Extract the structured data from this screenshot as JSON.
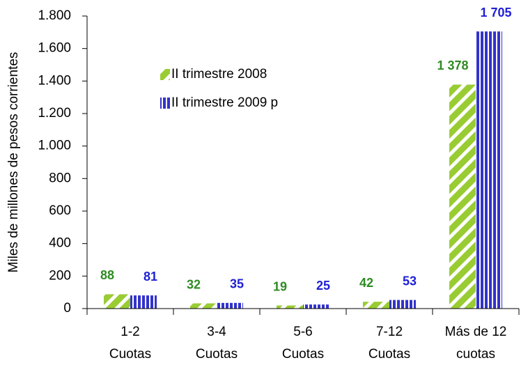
{
  "chart_data": {
    "type": "bar",
    "y_label": "Miles de millones de pesos corrientes",
    "categories": [
      [
        "1-2",
        "Cuotas"
      ],
      [
        "3-4",
        "Cuotas"
      ],
      [
        "5-6",
        "Cuotas"
      ],
      [
        "7-12",
        "Cuotas"
      ],
      [
        "Más de 12",
        "cuotas"
      ]
    ],
    "series": [
      {
        "name": "II trimestre 2008",
        "color": "#99cc33",
        "label_color": "#2e8b22",
        "values": [
          88,
          32,
          19,
          42,
          1378
        ],
        "value_labels": [
          "88",
          "32",
          "19",
          "42",
          "1 378"
        ]
      },
      {
        "name": "II trimestre 2009 p",
        "color": "#3333cc",
        "label_color": "#1f1fd6",
        "values": [
          81,
          35,
          25,
          53,
          1705
        ],
        "value_labels": [
          "81",
          "35",
          "25",
          "53",
          "1 705"
        ]
      }
    ],
    "ylim": [
      0,
      1800
    ],
    "yticks": [
      0,
      200,
      400,
      600,
      800,
      {
        "value": 1000,
        "label": "1.000"
      },
      {
        "value": 1200,
        "label": "1.200"
      },
      {
        "value": 1400,
        "label": "1.400"
      },
      {
        "value": 1600,
        "label": "1.600"
      },
      {
        "value": 1800,
        "label": "1.800"
      }
    ]
  }
}
